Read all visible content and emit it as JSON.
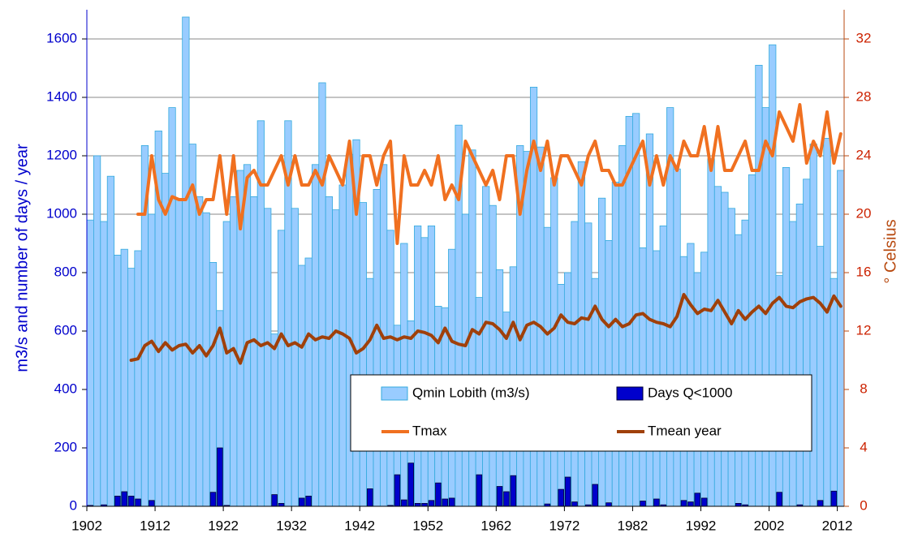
{
  "chart_data": {
    "type": "bar",
    "y_label": "m3/s and number of days / year",
    "y2_label": "° Celsius",
    "x": [
      1902,
      1903,
      1904,
      1905,
      1906,
      1907,
      1908,
      1909,
      1910,
      1911,
      1912,
      1913,
      1914,
      1915,
      1916,
      1917,
      1918,
      1919,
      1920,
      1921,
      1922,
      1923,
      1924,
      1925,
      1926,
      1927,
      1928,
      1929,
      1930,
      1931,
      1932,
      1933,
      1934,
      1935,
      1936,
      1937,
      1938,
      1939,
      1940,
      1941,
      1942,
      1943,
      1944,
      1945,
      1946,
      1947,
      1948,
      1949,
      1950,
      1951,
      1952,
      1953,
      1954,
      1955,
      1956,
      1957,
      1958,
      1959,
      1960,
      1961,
      1962,
      1963,
      1964,
      1965,
      1966,
      1967,
      1968,
      1969,
      1970,
      1971,
      1972,
      1973,
      1974,
      1975,
      1976,
      1977,
      1978,
      1979,
      1980,
      1981,
      1982,
      1983,
      1984,
      1985,
      1986,
      1987,
      1988,
      1989,
      1990,
      1991,
      1992,
      1993,
      1994,
      1995,
      1996,
      1997,
      1998,
      1999,
      2000,
      2001,
      2002,
      2003,
      2004,
      2005,
      2006,
      2007,
      2008,
      2009,
      2010,
      2011,
      2012
    ],
    "xlim": [
      1902,
      2013
    ],
    "xticks": [
      1902,
      1912,
      1922,
      1932,
      1942,
      1952,
      1962,
      1972,
      1982,
      1992,
      2002,
      2012
    ],
    "ylim": [
      0,
      1700
    ],
    "yticks": [
      0,
      200,
      400,
      600,
      800,
      1000,
      1200,
      1400,
      1600
    ],
    "y2lim": [
      0,
      34
    ],
    "y2ticks": [
      0,
      4,
      8,
      12,
      16,
      20,
      24,
      28,
      32
    ],
    "grid": true,
    "series": [
      {
        "name": "Qmin Lobith (m3/s)",
        "type": "bar",
        "color": "#99ccff",
        "edge": "#33aadd",
        "values": [
          980,
          1200,
          975,
          1130,
          860,
          880,
          815,
          875,
          1235,
          1000,
          1285,
          1140,
          1365,
          1050,
          1675,
          1240,
          1060,
          1005,
          835,
          670,
          975,
          1060,
          1150,
          1170,
          1060,
          1320,
          1020,
          590,
          945,
          1320,
          1020,
          825,
          850,
          1170,
          1450,
          1060,
          1015,
          1100,
          1205,
          1255,
          1040,
          780,
          1085,
          1170,
          945,
          620,
          900,
          635,
          960,
          920,
          960,
          685,
          680,
          880,
          1305,
          1000,
          1220,
          715,
          1095,
          1030,
          810,
          665,
          820,
          1235,
          1215,
          1435,
          1230,
          955,
          1125,
          760,
          800,
          975,
          1180,
          970,
          780,
          1055,
          910,
          1110,
          1235,
          1335,
          1345,
          885,
          1275,
          875,
          960,
          1365,
          1155,
          855,
          900,
          800,
          870,
          1190,
          1095,
          1075,
          1020,
          930,
          980,
          1135,
          1510,
          1365,
          1580,
          790,
          1160,
          975,
          1035,
          1120,
          1240,
          890,
          1260,
          780,
          1150
        ]
      },
      {
        "name": "Days Q<1000",
        "type": "bar",
        "color": "#0000cc",
        "edge": "#000033",
        "values": [
          3,
          0,
          5,
          0,
          35,
          50,
          35,
          25,
          0,
          20,
          0,
          0,
          0,
          0,
          0,
          0,
          0,
          0,
          48,
          200,
          3,
          0,
          0,
          0,
          0,
          0,
          0,
          40,
          10,
          0,
          0,
          28,
          35,
          0,
          0,
          0,
          0,
          0,
          0,
          0,
          0,
          60,
          0,
          0,
          3,
          108,
          22,
          148,
          10,
          10,
          20,
          80,
          25,
          28,
          0,
          0,
          0,
          108,
          0,
          0,
          68,
          50,
          105,
          0,
          0,
          0,
          0,
          8,
          0,
          58,
          100,
          15,
          0,
          5,
          75,
          0,
          12,
          0,
          0,
          0,
          0,
          18,
          0,
          25,
          5,
          0,
          0,
          20,
          15,
          45,
          28,
          0,
          0,
          0,
          0,
          10,
          5,
          0,
          0,
          0,
          0,
          48,
          0,
          0,
          5,
          0,
          0,
          20,
          0,
          52,
          0
        ]
      },
      {
        "name": "Tmax",
        "type": "line",
        "axis": "y2",
        "color": "#f07020",
        "values": [
          null,
          null,
          null,
          null,
          null,
          null,
          null,
          20,
          20,
          24,
          21,
          20,
          21.2,
          21,
          21,
          22,
          20,
          21,
          21,
          24,
          20,
          24,
          19,
          22.5,
          23,
          22,
          22,
          23,
          24,
          22,
          24,
          22,
          22,
          23,
          22,
          24,
          23,
          22,
          25,
          20,
          24,
          24,
          22,
          24,
          25,
          18,
          24,
          22,
          22,
          23,
          22,
          24,
          21,
          22,
          21,
          25,
          24,
          23,
          22,
          23,
          21,
          24,
          24,
          20,
          23,
          25,
          23,
          25,
          22,
          24,
          24,
          23,
          22,
          24,
          25,
          23,
          23,
          22,
          22,
          23,
          24,
          25,
          22,
          24,
          22,
          24,
          23,
          25,
          24,
          24,
          26,
          23,
          26,
          23,
          23,
          24,
          25,
          23,
          23,
          25,
          24,
          27,
          26,
          25,
          27.5,
          23.5,
          25,
          24,
          27,
          23.5,
          25.5
        ]
      },
      {
        "name": "Tmean year",
        "type": "line",
        "axis": "y2",
        "color": "#a0400a",
        "values": [
          null,
          null,
          null,
          null,
          null,
          null,
          10,
          10.1,
          11,
          11.3,
          10.6,
          11.2,
          10.7,
          11,
          11.1,
          10.5,
          11,
          10.3,
          11,
          12.2,
          10.5,
          10.8,
          9.8,
          11.2,
          11.4,
          11,
          11.2,
          10.8,
          11.8,
          11,
          11.2,
          10.9,
          11.8,
          11.4,
          11.6,
          11.5,
          12,
          11.8,
          11.5,
          10.5,
          10.8,
          11.4,
          12.4,
          11.5,
          11.6,
          11.4,
          11.6,
          11.5,
          12,
          11.9,
          11.7,
          11.2,
          12.2,
          11.3,
          11.1,
          11,
          12.1,
          11.8,
          12.6,
          12.5,
          12.1,
          11.5,
          12.6,
          11.4,
          12.4,
          12.6,
          12.3,
          11.8,
          12.2,
          13.1,
          12.6,
          12.5,
          12.9,
          12.8,
          13.7,
          12.8,
          12.3,
          12.8,
          12.3,
          12.5,
          13.1,
          13.2,
          12.8,
          12.6,
          12.5,
          12.3,
          13,
          14.5,
          13.8,
          13.2,
          13.5,
          13.4,
          14.1,
          13.3,
          12.5,
          13.4,
          12.8,
          13.3,
          13.7,
          13.2,
          13.9,
          14.3,
          13.7,
          13.6,
          14,
          14.2,
          14.3,
          13.9,
          13.3,
          14.4,
          13.7
        ]
      }
    ]
  }
}
